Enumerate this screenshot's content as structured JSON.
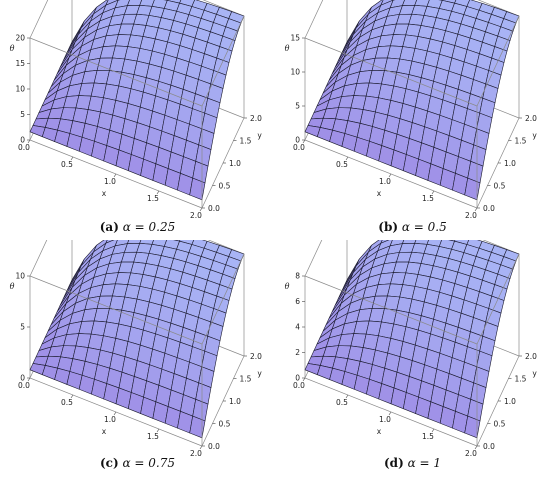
{
  "chart_data": [
    {
      "type": "surface",
      "panel_label": "(a)",
      "caption_param": "α = 0.25",
      "xlabel": "x",
      "ylabel": "y",
      "zlabel": "θ",
      "x_ticks": [
        "0.0",
        "0.5",
        "1.0",
        "1.5",
        "2.0"
      ],
      "y_ticks": [
        "0.0",
        "0.5",
        "1.0",
        "1.5",
        "2.0"
      ],
      "z_ticks": [
        "0",
        "5",
        "10",
        "15",
        "20"
      ],
      "xlim": [
        0,
        2
      ],
      "ylim": [
        0,
        2
      ],
      "zlim": [
        0,
        20
      ],
      "z_max": 20
    },
    {
      "type": "surface",
      "panel_label": "(b)",
      "caption_param": "α = 0.5",
      "xlabel": "x",
      "ylabel": "y",
      "zlabel": "θ",
      "x_ticks": [
        "0.0",
        "0.5",
        "1.0",
        "1.5",
        "2.0"
      ],
      "y_ticks": [
        "0.0",
        "0.5",
        "1.0",
        "1.5",
        "2.0"
      ],
      "z_ticks": [
        "0",
        "5",
        "10",
        "15"
      ],
      "xlim": [
        0,
        2
      ],
      "ylim": [
        0,
        2
      ],
      "zlim": [
        0,
        15
      ],
      "z_max": 15
    },
    {
      "type": "surface",
      "panel_label": "(c)",
      "caption_param": "α = 0.75",
      "xlabel": "x",
      "ylabel": "y",
      "zlabel": "θ",
      "x_ticks": [
        "0.0",
        "0.5",
        "1.0",
        "1.5",
        "2.0"
      ],
      "y_ticks": [
        "0.0",
        "0.5",
        "1.0",
        "1.5",
        "2.0"
      ],
      "z_ticks": [
        "0",
        "5",
        "10"
      ],
      "xlim": [
        0,
        2
      ],
      "ylim": [
        0,
        2
      ],
      "zlim": [
        0,
        10
      ],
      "z_max": 10
    },
    {
      "type": "surface",
      "panel_label": "(d)",
      "caption_param": "α = 1",
      "xlabel": "x",
      "ylabel": "y",
      "zlabel": "θ",
      "x_ticks": [
        "0.0",
        "0.5",
        "1.0",
        "1.5",
        "2.0"
      ],
      "y_ticks": [
        "0.0",
        "0.5",
        "1.0",
        "1.5",
        "2.0"
      ],
      "z_ticks": [
        "0",
        "2",
        "4",
        "6",
        "8"
      ],
      "xlim": [
        0,
        2
      ],
      "ylim": [
        0,
        2
      ],
      "zlim": [
        0,
        8
      ],
      "z_max": 8
    }
  ],
  "colors": {
    "surface_top": "#a8b4f5",
    "surface_bottom": "#9b7fe0",
    "mesh": "#1a1a2e",
    "box": "#8a8a8a"
  }
}
